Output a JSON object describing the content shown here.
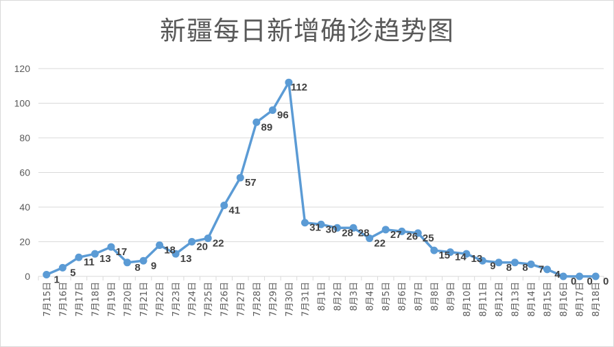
{
  "chart_data": {
    "type": "line",
    "title": "新疆每日新增确诊趋势图",
    "xlabel": "",
    "ylabel": "",
    "ylim": [
      0,
      120
    ],
    "yticks": [
      0,
      20,
      40,
      60,
      80,
      100,
      120
    ],
    "grid": true,
    "legend": "none",
    "categories": [
      "7月15日",
      "7月16日",
      "7月17日",
      "7月18日",
      "7月19日",
      "7月20日",
      "7月21日",
      "7月22日",
      "7月23日",
      "7月24日",
      "7月25日",
      "7月26日",
      "7月27日",
      "7月28日",
      "7月29日",
      "7月30日",
      "7月31日",
      "8月1日",
      "8月2日",
      "8月3日",
      "8月4日",
      "8月5日",
      "8月6日",
      "8月7日",
      "8月8日",
      "8月9日",
      "8月10日",
      "8月11日",
      "8月12日",
      "8月13日",
      "8月14日",
      "8月15日",
      "8月16日",
      "8月17日",
      "8月18日"
    ],
    "series": [
      {
        "values": [
          1,
          5,
          11,
          13,
          17,
          8,
          9,
          18,
          13,
          20,
          22,
          41,
          57,
          89,
          96,
          112,
          31,
          30,
          28,
          28,
          22,
          27,
          26,
          25,
          15,
          14,
          13,
          9,
          8,
          8,
          7,
          4,
          0,
          0,
          0
        ],
        "color": "#5b9bd5"
      }
    ]
  }
}
